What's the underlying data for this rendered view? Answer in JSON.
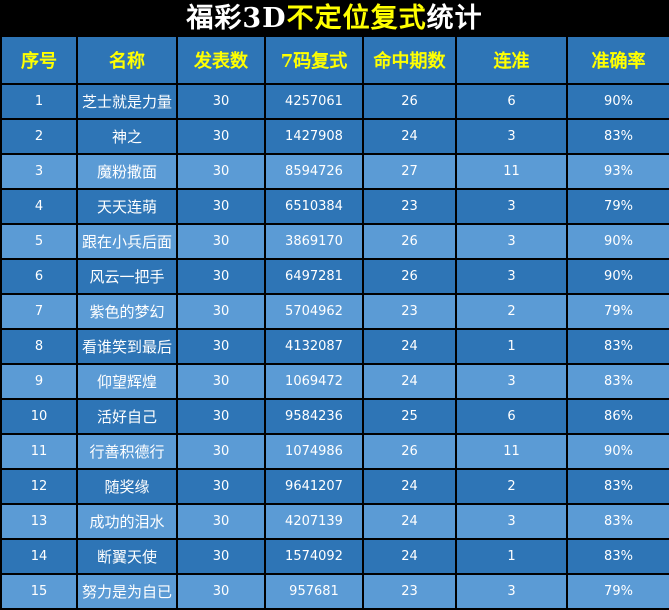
{
  "title": {
    "part1": "福彩3D",
    "part2": "不定位复式",
    "part3": "统计"
  },
  "colors": {
    "header_bg": "#2e75b6",
    "dark_row": "#2e75b6",
    "light_row": "#5b9bd5",
    "header_text": "#ffff00",
    "title_highlight": "#ffff00"
  },
  "columns": [
    "序号",
    "名称",
    "发表数",
    "7码复式",
    "命中期数",
    "连准",
    "准确率"
  ],
  "rows": [
    [
      "1",
      "芝士就是力量",
      "30",
      "4257061",
      "26",
      "6",
      "90%"
    ],
    [
      "2",
      "神之",
      "30",
      "1427908",
      "24",
      "3",
      "83%"
    ],
    [
      "3",
      "魔粉撒面",
      "30",
      "8594726",
      "27",
      "11",
      "93%"
    ],
    [
      "4",
      "天天连萌",
      "30",
      "6510384",
      "23",
      "3",
      "79%"
    ],
    [
      "5",
      "跟在小兵后面",
      "30",
      "3869170",
      "26",
      "3",
      "90%"
    ],
    [
      "6",
      "风云一把手",
      "30",
      "6497281",
      "26",
      "3",
      "90%"
    ],
    [
      "7",
      "紫色的梦幻",
      "30",
      "5704962",
      "23",
      "2",
      "79%"
    ],
    [
      "8",
      "看谁笑到最后",
      "30",
      "4132087",
      "24",
      "1",
      "83%"
    ],
    [
      "9",
      "仰望辉煌",
      "30",
      "1069472",
      "24",
      "3",
      "83%"
    ],
    [
      "10",
      "活好自己",
      "30",
      "9584236",
      "25",
      "6",
      "86%"
    ],
    [
      "11",
      "行善积德行",
      "30",
      "1074986",
      "26",
      "11",
      "90%"
    ],
    [
      "12",
      "随奖缘",
      "30",
      "9641207",
      "24",
      "2",
      "83%"
    ],
    [
      "13",
      "成功的泪水",
      "30",
      "4207139",
      "24",
      "3",
      "83%"
    ],
    [
      "14",
      "断翼天使",
      "30",
      "1574092",
      "24",
      "1",
      "83%"
    ],
    [
      "15",
      "努力是为自已",
      "30",
      "957681",
      "23",
      "3",
      "79%"
    ]
  ]
}
